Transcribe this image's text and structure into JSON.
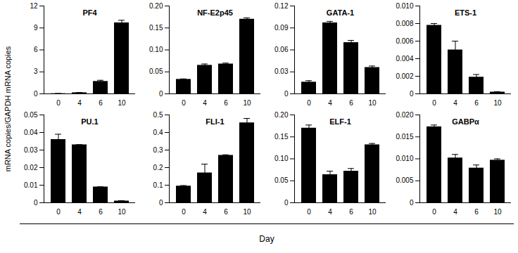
{
  "axis_labels": {
    "x": "Day",
    "y": "mRNA copies/GAPDH mRNA copies"
  },
  "chart_data": [
    {
      "type": "bar",
      "title": "PF4",
      "categories": [
        "0",
        "4",
        "6",
        "10"
      ],
      "values": [
        0.03,
        0.15,
        1.7,
        9.7
      ],
      "errors": [
        0.01,
        0.03,
        0.15,
        0.35
      ],
      "color": "#000000",
      "ylim": [
        0,
        12
      ],
      "yticks": [
        0,
        3,
        6,
        9,
        12
      ]
    },
    {
      "type": "bar",
      "title": "NF-E2p45",
      "categories": [
        "0",
        "4",
        "6",
        "10"
      ],
      "values": [
        0.033,
        0.065,
        0.068,
        0.17
      ],
      "errors": [
        0.001,
        0.003,
        0.002,
        0.003
      ],
      "color": "#000000",
      "ylim": [
        0,
        0.2
      ],
      "yticks": [
        0,
        0.05,
        {
          "value": 0.1,
          "label": "0.10"
        },
        0.15,
        {
          "value": 0.2,
          "label": "0.20"
        }
      ]
    },
    {
      "type": "bar",
      "title": "GATA-1",
      "categories": [
        "0",
        "4",
        "6",
        "10"
      ],
      "values": [
        0.016,
        0.097,
        0.07,
        0.036
      ],
      "errors": [
        0.002,
        0.002,
        0.003,
        0.002
      ],
      "color": "#000000",
      "ylim": [
        0,
        0.12
      ],
      "yticks": [
        0,
        0.03,
        0.06,
        0.09,
        {
          "value": 0.12,
          "label": "0.12"
        }
      ]
    },
    {
      "type": "bar",
      "title": "ETS-1",
      "categories": [
        "0",
        "4",
        "6",
        "10"
      ],
      "values": [
        0.0078,
        0.005,
        0.0019,
        0.0002
      ],
      "errors": [
        0.0002,
        0.001,
        0.0003,
        5e-05
      ],
      "color": "#000000",
      "ylim": [
        0,
        0.01
      ],
      "yticks": [
        0,
        0.002,
        0.004,
        0.006,
        0.008,
        {
          "value": 0.01,
          "label": "0.010"
        }
      ]
    },
    {
      "type": "bar",
      "title": "PU.1",
      "categories": [
        "0",
        "4",
        "6",
        "10"
      ],
      "values": [
        0.036,
        0.033,
        0.009,
        0.001
      ],
      "errors": [
        0.003,
        0,
        0,
        0.0002
      ],
      "color": "#000000",
      "ylim": [
        0,
        0.05
      ],
      "yticks": [
        0,
        0.01,
        0.02,
        0.03,
        0.04,
        0.05
      ]
    },
    {
      "type": "bar",
      "title": "FLI-1",
      "categories": [
        "0",
        "4",
        "6",
        "10"
      ],
      "values": [
        0.095,
        0.17,
        0.27,
        0.455
      ],
      "errors": [
        0.003,
        0.05,
        0.003,
        0.025
      ],
      "color": "#000000",
      "ylim": [
        0,
        0.5
      ],
      "yticks": [
        0,
        0.1,
        0.2,
        0.3,
        0.4,
        0.5
      ]
    },
    {
      "type": "bar",
      "title": "ELF-1",
      "categories": [
        "0",
        "4",
        "6",
        "10"
      ],
      "values": [
        0.17,
        0.064,
        0.072,
        0.132
      ],
      "errors": [
        0.007,
        0.008,
        0.006,
        0.003
      ],
      "color": "#000000",
      "ylim": [
        0,
        0.2
      ],
      "yticks": [
        0,
        0.05,
        {
          "value": 0.1,
          "label": "0.10"
        },
        0.15,
        {
          "value": 0.2,
          "label": "0.20"
        }
      ]
    },
    {
      "type": "bar",
      "title": "GABPα",
      "categories": [
        "0",
        "4",
        "6",
        "10"
      ],
      "values": [
        0.0173,
        0.0102,
        0.0079,
        0.0097
      ],
      "errors": [
        0.0004,
        0.0008,
        0.0007,
        0.0003
      ],
      "color": "#000000",
      "ylim": [
        0,
        0.02
      ],
      "yticks": [
        0,
        0.005,
        {
          "value": 0.01,
          "label": "0.010"
        },
        0.015,
        {
          "value": 0.02,
          "label": "0.020"
        }
      ]
    }
  ]
}
